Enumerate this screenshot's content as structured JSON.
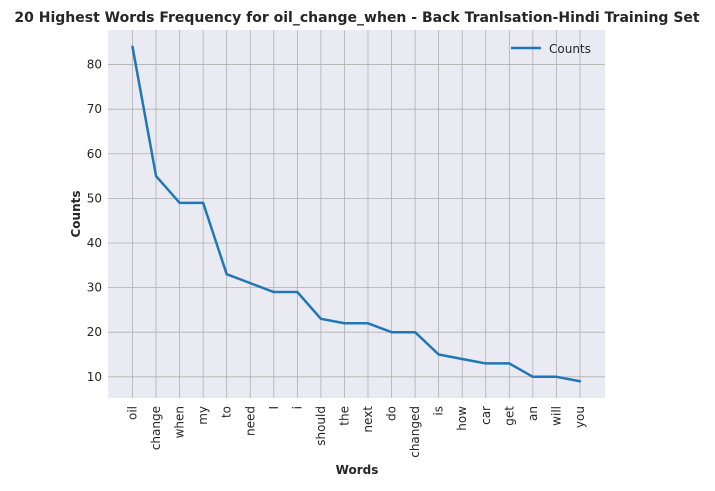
{
  "chart_data": {
    "type": "line",
    "title": "20 Highest Words Frequency for oil_change_when - Back Tranlsation-Hindi Training Set",
    "xlabel": "Words",
    "ylabel": "Counts",
    "categories": [
      "oil",
      "change",
      "when",
      "my",
      "to",
      "need",
      "I",
      "i",
      "should",
      "the",
      "next",
      "do",
      "changed",
      "is",
      "how",
      "car",
      "get",
      "an",
      "will",
      "you"
    ],
    "series": [
      {
        "name": "Counts",
        "values": [
          84,
          55,
          49,
          49,
          33,
          31,
          29,
          29,
          23,
          22,
          22,
          20,
          20,
          15,
          14,
          13,
          13,
          10,
          10,
          9
        ],
        "color": "#1f77b4"
      }
    ],
    "yticks": [
      10,
      20,
      30,
      40,
      50,
      60,
      70,
      80
    ],
    "ylim": [
      5.25,
      87.75
    ],
    "grid": true,
    "legend_position": "top-right",
    "colors": {
      "plot_background": "#eaeaf2",
      "grid": "#b0b0b0",
      "line": "#1f77b4"
    }
  }
}
